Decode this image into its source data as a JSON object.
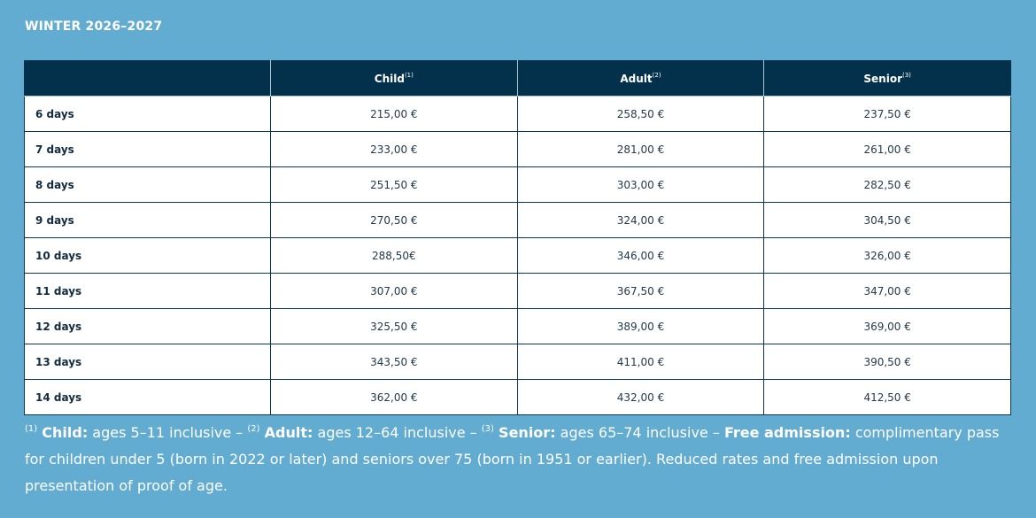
{
  "title": "WINTER 2026–2027",
  "table": {
    "headers": [
      {
        "label": "Child",
        "note": "(1)"
      },
      {
        "label": "Adult",
        "note": "(2)"
      },
      {
        "label": "Senior",
        "note": "(3)"
      }
    ],
    "rows": [
      {
        "label": "6 days",
        "child": "215,00 €",
        "adult": "258,50 €",
        "senior": "237,50 €"
      },
      {
        "label": "7 days",
        "child": "233,00 €",
        "adult": "281,00 €",
        "senior": "261,00 €"
      },
      {
        "label": "8 days",
        "child": "251,50 €",
        "adult": "303,00 €",
        "senior": "282,50 €"
      },
      {
        "label": "9 days",
        "child": "270,50 €",
        "adult": "324,00 €",
        "senior": "304,50 €"
      },
      {
        "label": "10 days",
        "child": "288,50€",
        "adult": "346,00 €",
        "senior": "326,00 €"
      },
      {
        "label": "11 days",
        "child": "307,00 €",
        "adult": "367,50 €",
        "senior": "347,00 €"
      },
      {
        "label": "12 days",
        "child": "325,50 €",
        "adult": "389,00 €",
        "senior": "369,00 €"
      },
      {
        "label": "13 days",
        "child": "343,50 €",
        "adult": "411,00 €",
        "senior": "390,50 €"
      },
      {
        "label": "14 days",
        "child": "362,00 €",
        "adult": "432,00 €",
        "senior": "412,50 €"
      }
    ]
  },
  "footnote": {
    "n1": "(1)",
    "child_label": "Child:",
    "child_text": " ages 5–11 inclusive – ",
    "n2": "(2)",
    "adult_label": "Adult:",
    "adult_text": " ages 12–64 inclusive – ",
    "n3": "(3)",
    "senior_label": "Senior:",
    "senior_text": " ages 65–74 inclusive – ",
    "free_label": "Free admission:",
    "free_text": " complimentary pass for children under 5 (born in 2022 or later) and seniors over 75 (born in 1951 or earlier). Reduced rates and free admission upon presentation of proof of age."
  }
}
